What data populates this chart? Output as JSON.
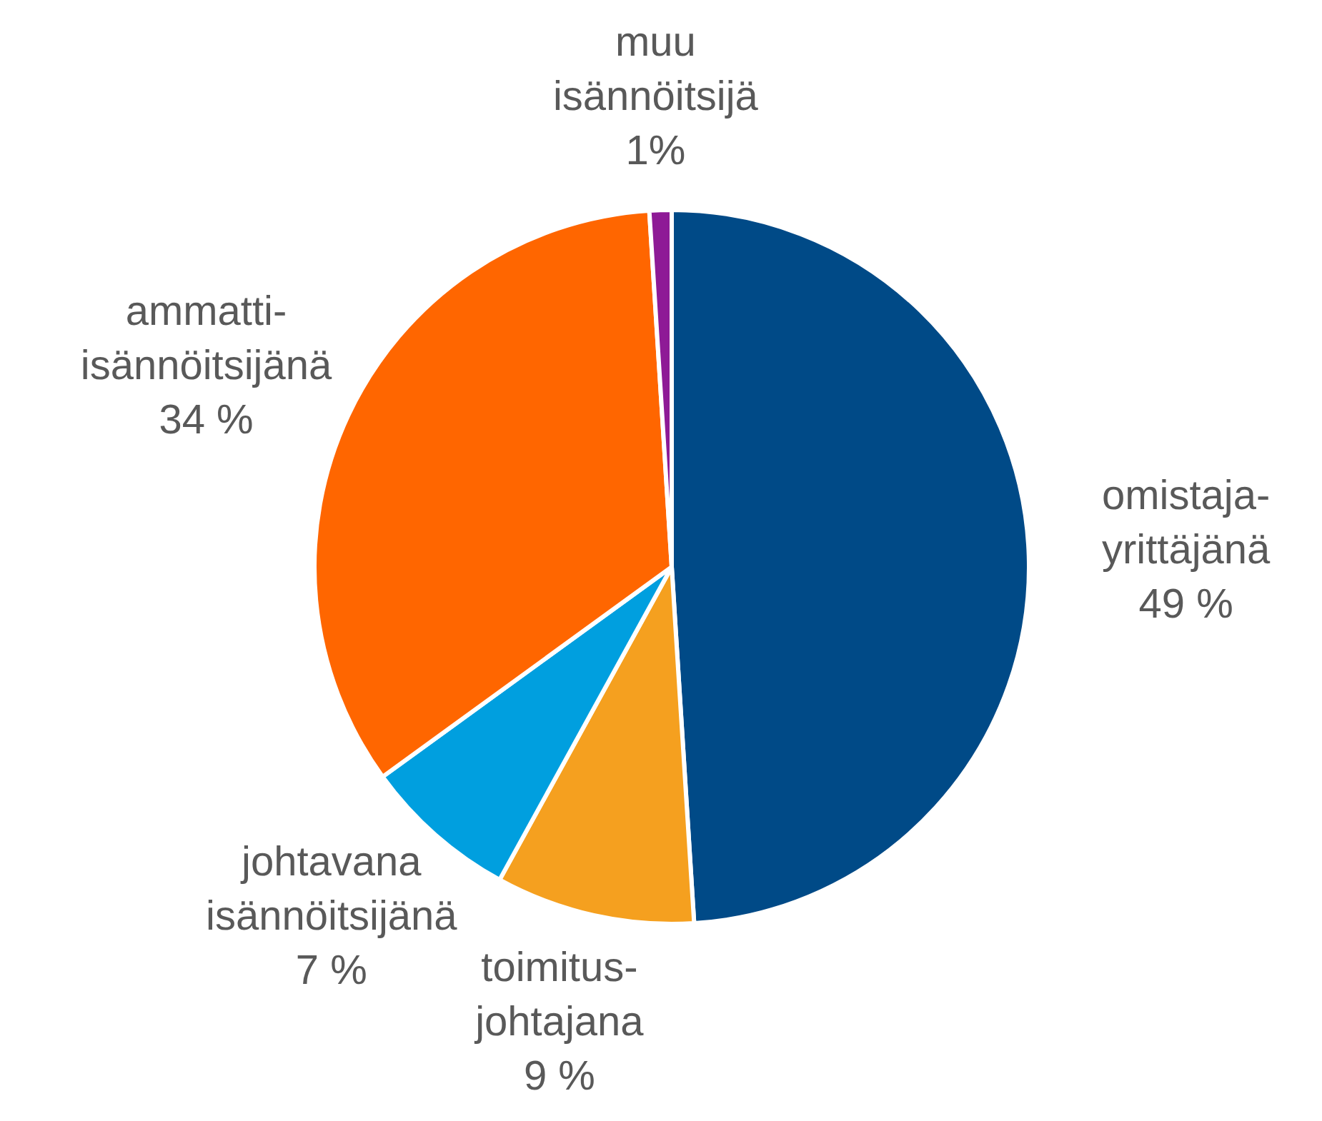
{
  "chart_data": {
    "type": "pie",
    "categories": [
      "omistaja-yrittäjänä",
      "toimitus-johtajana",
      "johtavana isännöitsijänä",
      "ammatti-isännöitsijänä",
      "muu isännöitsijä"
    ],
    "values": [
      49,
      9,
      7,
      34,
      1
    ],
    "value_labels": [
      "49 %",
      "9 %",
      "7 %",
      "34 %",
      "1%"
    ],
    "colors": [
      "#004a87",
      "#f5a01f",
      "#009fdf",
      "#ff6600",
      "#8e1a96"
    ]
  }
}
